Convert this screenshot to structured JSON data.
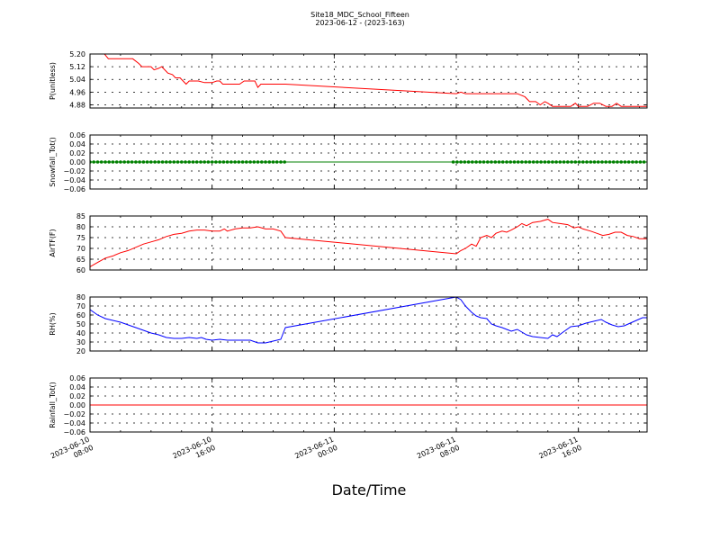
{
  "chart_data": {
    "title": "Site18_MDC_School_Fifteen",
    "subtitle": "2023-06-12 - (2023-163)",
    "xlabel": "Date/Time",
    "x_ticks": [
      "2023-06-10\n08:00",
      "2023-06-10\n16:00",
      "2023-06-11\n00:00",
      "2023-06-11\n08:00",
      "2023-06-11\n16:00"
    ],
    "x_tick_hours": [
      0,
      8,
      16,
      24,
      32
    ],
    "x_range_hours": [
      0,
      36.5
    ],
    "panels": [
      {
        "type": "line",
        "ylabel": "P(unitless)",
        "ylim": [
          4.86,
          5.2
        ],
        "yticks": [
          "5.20",
          "5.12",
          "5.04",
          "4.96",
          "4.88"
        ],
        "ytick_values": [
          5.2,
          5.12,
          5.04,
          4.96,
          4.88
        ],
        "grid": true,
        "series": [
          {
            "color": "#ff0000",
            "markers": false,
            "points": [
              [
                0.95,
                5.2
              ],
              [
                1.2,
                5.17
              ],
              [
                2.0,
                5.17
              ],
              [
                2.8,
                5.17
              ],
              [
                3.2,
                5.14
              ],
              [
                3.4,
                5.12
              ],
              [
                3.8,
                5.12
              ],
              [
                4.0,
                5.12
              ],
              [
                4.2,
                5.1
              ],
              [
                4.5,
                5.11
              ],
              [
                4.7,
                5.12
              ],
              [
                4.9,
                5.1
              ],
              [
                5.1,
                5.08
              ],
              [
                5.4,
                5.07
              ],
              [
                5.6,
                5.05
              ],
              [
                5.9,
                5.05
              ],
              [
                6.1,
                5.03
              ],
              [
                6.3,
                5.01
              ],
              [
                6.5,
                5.03
              ],
              [
                6.8,
                5.03
              ],
              [
                7.1,
                5.03
              ],
              [
                7.5,
                5.02
              ],
              [
                8.0,
                5.02
              ],
              [
                8.3,
                5.03
              ],
              [
                8.5,
                5.03
              ],
              [
                8.7,
                5.01
              ],
              [
                9.0,
                5.01
              ],
              [
                9.5,
                5.01
              ],
              [
                9.8,
                5.01
              ],
              [
                10.1,
                5.03
              ],
              [
                10.5,
                5.03
              ],
              [
                10.8,
                5.03
              ],
              [
                11.0,
                4.99
              ],
              [
                11.2,
                5.01
              ],
              [
                11.5,
                5.01
              ],
              [
                12.0,
                5.01
              ],
              [
                12.5,
                5.01
              ],
              [
                12.8,
                5.01
              ],
              [
                24.0,
                4.95
              ],
              [
                24.3,
                4.96
              ],
              [
                24.6,
                4.95
              ],
              [
                25.0,
                4.95
              ],
              [
                25.5,
                4.95
              ],
              [
                26.0,
                4.95
              ],
              [
                27.0,
                4.95
              ],
              [
                27.5,
                4.95
              ],
              [
                28.0,
                4.95
              ],
              [
                28.5,
                4.93
              ],
              [
                28.8,
                4.9
              ],
              [
                29.2,
                4.9
              ],
              [
                29.5,
                4.88
              ],
              [
                29.8,
                4.9
              ],
              [
                30.0,
                4.89
              ],
              [
                30.3,
                4.87
              ],
              [
                30.6,
                4.87
              ],
              [
                31.0,
                4.87
              ],
              [
                31.5,
                4.87
              ],
              [
                31.8,
                4.89
              ],
              [
                32.0,
                4.87
              ],
              [
                32.3,
                4.87
              ],
              [
                32.6,
                4.87
              ],
              [
                33.0,
                4.89
              ],
              [
                33.4,
                4.89
              ],
              [
                33.8,
                4.87
              ],
              [
                34.2,
                4.87
              ],
              [
                34.5,
                4.89
              ],
              [
                34.8,
                4.87
              ],
              [
                35.2,
                4.87
              ],
              [
                35.6,
                4.87
              ],
              [
                36.0,
                4.87
              ],
              [
                36.5,
                4.87
              ]
            ]
          }
        ]
      },
      {
        "type": "line",
        "ylabel": "Snowfall_Tot()",
        "ylim": [
          -0.06,
          0.06
        ],
        "yticks": [
          "0.06",
          "0.04",
          "0.02",
          "0.00",
          "−0.02",
          "−0.04",
          "−0.06"
        ],
        "ytick_values": [
          0.06,
          0.04,
          0.02,
          0.0,
          -0.02,
          -0.04,
          -0.06
        ],
        "grid": true,
        "series": [
          {
            "color": "#008000",
            "markers": true,
            "marker_ranges_hours": [
              [
                0,
                12.8
              ],
              [
                23.8,
                36.5
              ]
            ],
            "marker_step_hours": 0.25,
            "points": [
              [
                0,
                0.0
              ],
              [
                36.5,
                0.0
              ]
            ]
          }
        ]
      },
      {
        "type": "line",
        "ylabel": "AirTF(F)",
        "ylim": [
          60,
          85
        ],
        "yticks": [
          "85",
          "80",
          "75",
          "70",
          "65",
          "60"
        ],
        "ytick_values": [
          85,
          80,
          75,
          70,
          65,
          60
        ],
        "grid": true,
        "series": [
          {
            "color": "#ff0000",
            "markers": false,
            "points": [
              [
                0.0,
                61.5
              ],
              [
                0.5,
                63.5
              ],
              [
                1.0,
                65.5
              ],
              [
                1.5,
                66.5
              ],
              [
                2.0,
                68
              ],
              [
                2.5,
                69
              ],
              [
                3.0,
                70.5
              ],
              [
                3.5,
                72
              ],
              [
                4.0,
                73
              ],
              [
                4.5,
                74
              ],
              [
                5.0,
                75.5
              ],
              [
                5.5,
                76.5
              ],
              [
                6.0,
                77
              ],
              [
                6.5,
                78
              ],
              [
                7.0,
                78.5
              ],
              [
                7.5,
                78.5
              ],
              [
                8.0,
                78
              ],
              [
                8.5,
                78
              ],
              [
                8.8,
                79
              ],
              [
                9.0,
                78
              ],
              [
                9.5,
                79
              ],
              [
                10.0,
                79.5
              ],
              [
                10.5,
                79.5
              ],
              [
                11.0,
                80
              ],
              [
                11.5,
                79
              ],
              [
                12.0,
                79
              ],
              [
                12.5,
                78
              ],
              [
                12.8,
                75
              ],
              [
                24.0,
                67.5
              ],
              [
                24.3,
                69
              ],
              [
                24.6,
                70
              ],
              [
                25.0,
                72
              ],
              [
                25.3,
                71
              ],
              [
                25.6,
                75
              ],
              [
                26.0,
                76
              ],
              [
                26.3,
                75
              ],
              [
                26.6,
                77
              ],
              [
                27.0,
                78
              ],
              [
                27.3,
                77.5
              ],
              [
                27.6,
                78.5
              ],
              [
                28.0,
                80
              ],
              [
                28.3,
                81.5
              ],
              [
                28.6,
                80.5
              ],
              [
                29.0,
                82
              ],
              [
                29.5,
                82.5
              ],
              [
                30.0,
                83.5
              ],
              [
                30.3,
                82
              ],
              [
                30.8,
                81.5
              ],
              [
                31.3,
                81
              ],
              [
                31.7,
                79.5
              ],
              [
                32.0,
                80
              ],
              [
                32.3,
                79
              ],
              [
                32.8,
                78
              ],
              [
                33.2,
                77
              ],
              [
                33.6,
                76
              ],
              [
                34.0,
                76.5
              ],
              [
                34.4,
                77.5
              ],
              [
                34.8,
                77.5
              ],
              [
                35.2,
                76
              ],
              [
                35.6,
                75.5
              ],
              [
                36.0,
                74.5
              ],
              [
                36.5,
                74.5
              ]
            ]
          }
        ]
      },
      {
        "type": "line",
        "ylabel": "RH(%)",
        "ylim": [
          20,
          80
        ],
        "yticks": [
          "80",
          "70",
          "60",
          "50",
          "40",
          "30",
          "20"
        ],
        "ytick_values": [
          80,
          70,
          60,
          50,
          40,
          30,
          20
        ],
        "grid": true,
        "series": [
          {
            "color": "#0000ff",
            "markers": false,
            "points": [
              [
                0.0,
                66
              ],
              [
                0.5,
                60
              ],
              [
                1.0,
                56
              ],
              [
                1.5,
                54
              ],
              [
                2.0,
                52
              ],
              [
                2.5,
                49
              ],
              [
                3.0,
                46
              ],
              [
                3.5,
                43
              ],
              [
                4.0,
                40
              ],
              [
                4.5,
                38
              ],
              [
                5.0,
                35
              ],
              [
                5.5,
                34
              ],
              [
                6.0,
                34
              ],
              [
                6.5,
                35
              ],
              [
                7.0,
                34
              ],
              [
                7.3,
                35
              ],
              [
                7.6,
                33
              ],
              [
                8.0,
                32
              ],
              [
                8.5,
                33
              ],
              [
                9.0,
                32
              ],
              [
                9.5,
                32
              ],
              [
                10.0,
                32
              ],
              [
                10.5,
                32
              ],
              [
                11.0,
                29
              ],
              [
                11.5,
                29
              ],
              [
                12.0,
                31
              ],
              [
                12.5,
                33
              ],
              [
                12.8,
                46
              ],
              [
                24.0,
                80
              ],
              [
                24.3,
                77
              ],
              [
                24.6,
                70
              ],
              [
                25.0,
                63
              ],
              [
                25.3,
                59
              ],
              [
                25.6,
                57
              ],
              [
                26.0,
                56
              ],
              [
                26.3,
                50
              ],
              [
                26.6,
                48
              ],
              [
                27.0,
                46
              ],
              [
                27.3,
                44
              ],
              [
                27.6,
                42
              ],
              [
                28.0,
                44
              ],
              [
                28.3,
                41
              ],
              [
                28.6,
                38
              ],
              [
                29.0,
                36
              ],
              [
                29.5,
                35
              ],
              [
                30.0,
                34
              ],
              [
                30.3,
                38
              ],
              [
                30.6,
                36
              ],
              [
                31.0,
                41
              ],
              [
                31.5,
                47
              ],
              [
                32.0,
                48
              ],
              [
                32.5,
                51
              ],
              [
                33.0,
                53
              ],
              [
                33.5,
                55
              ],
              [
                33.8,
                52
              ],
              [
                34.2,
                49
              ],
              [
                34.6,
                47
              ],
              [
                35.0,
                48
              ],
              [
                35.4,
                51
              ],
              [
                35.8,
                54
              ],
              [
                36.2,
                57
              ],
              [
                36.5,
                57
              ]
            ]
          }
        ]
      },
      {
        "type": "line",
        "ylabel": "Rainfall_Tot()",
        "ylim": [
          -0.06,
          0.06
        ],
        "yticks": [
          "0.06",
          "0.04",
          "0.02",
          "0.00",
          "−0.02",
          "−0.04",
          "−0.06"
        ],
        "ytick_values": [
          0.06,
          0.04,
          0.02,
          0.0,
          -0.02,
          -0.04,
          -0.06
        ],
        "grid": true,
        "series": [
          {
            "color": "#ff0000",
            "markers": false,
            "points": [
              [
                0,
                0.0
              ],
              [
                36.5,
                0.0
              ]
            ]
          }
        ]
      }
    ]
  }
}
